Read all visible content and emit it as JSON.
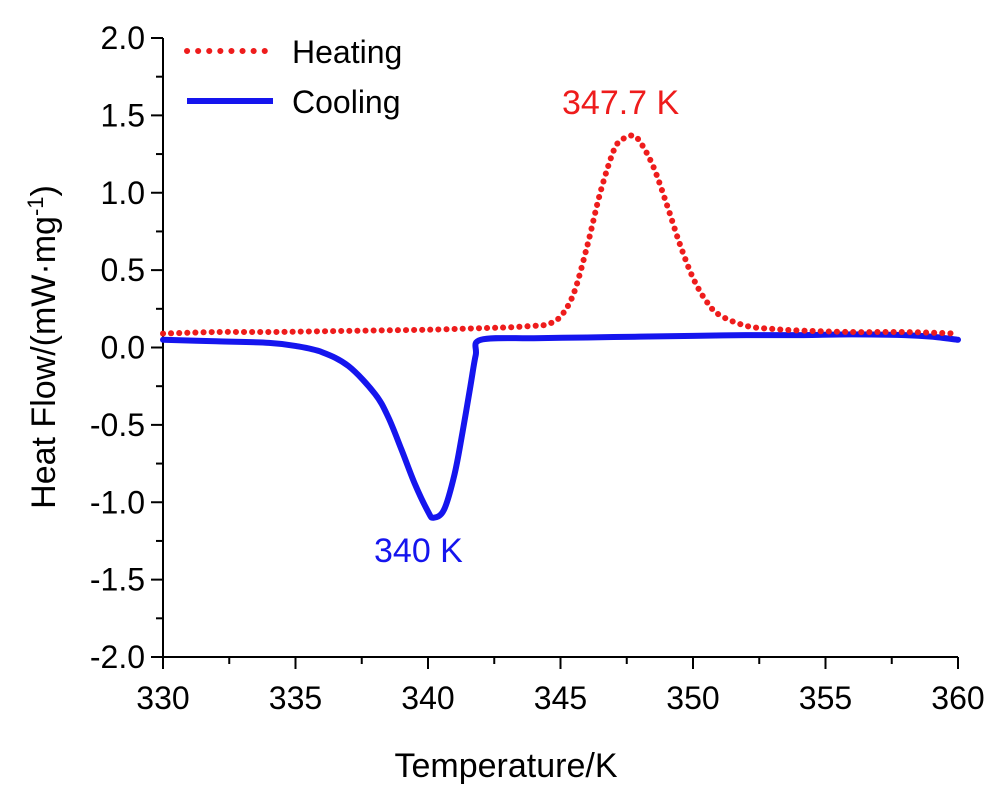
{
  "chart_data": {
    "type": "line",
    "title": "",
    "xlabel": "Temperature/K",
    "ylabel_main": "Heat Flow/(mW·mg",
    "ylabel_sup": "-1",
    "ylabel_close": ")",
    "xlim": [
      330,
      360
    ],
    "ylim": [
      -2.0,
      2.0
    ],
    "xticks": [
      330,
      335,
      340,
      345,
      350,
      355,
      360
    ],
    "xtick_labels": [
      "330",
      "335",
      "340",
      "345",
      "350",
      "355",
      "360"
    ],
    "yticks": [
      -2.0,
      -1.5,
      -1.0,
      -0.5,
      0.0,
      0.5,
      1.0,
      1.5,
      2.0
    ],
    "ytick_labels": [
      "-2.0",
      "-1.5",
      "-1.0",
      "-0.5",
      "0.0",
      "0.5",
      "1.0",
      "1.5",
      "2.0"
    ],
    "grid": false,
    "legend_position": "top-left",
    "series": [
      {
        "name": "Heating",
        "color": "#ee1c1c",
        "style": "dotted",
        "x": [
          330,
          332,
          334,
          336,
          338,
          340,
          342,
          343,
          344,
          344.5,
          345,
          345.5,
          346,
          346.5,
          347,
          347.3,
          347.7,
          348,
          348.5,
          349,
          349.5,
          350,
          350.5,
          351,
          352,
          353,
          354,
          356,
          358,
          360
        ],
        "y": [
          0.09,
          0.1,
          0.1,
          0.105,
          0.11,
          0.115,
          0.125,
          0.13,
          0.14,
          0.15,
          0.2,
          0.35,
          0.65,
          1.0,
          1.27,
          1.34,
          1.37,
          1.33,
          1.17,
          0.93,
          0.67,
          0.45,
          0.3,
          0.21,
          0.14,
          0.12,
          0.11,
          0.1,
          0.1,
          0.09
        ]
      },
      {
        "name": "Cooling",
        "color": "#1515ee",
        "style": "solid",
        "x": [
          330,
          332,
          334,
          335,
          336,
          337,
          338,
          338.5,
          339,
          339.5,
          340,
          340.2,
          340.6,
          341,
          341.3,
          341.6,
          341.8,
          342,
          344,
          346,
          348,
          350,
          352,
          354,
          356,
          358,
          359,
          360
        ],
        "y": [
          0.05,
          0.04,
          0.03,
          0.01,
          -0.03,
          -0.12,
          -0.3,
          -0.45,
          -0.66,
          -0.88,
          -1.06,
          -1.1,
          -1.05,
          -0.82,
          -0.55,
          -0.25,
          -0.05,
          0.05,
          0.06,
          0.065,
          0.07,
          0.075,
          0.08,
          0.08,
          0.085,
          0.08,
          0.07,
          0.05
        ]
      }
    ],
    "annotations": [
      {
        "text": "347.7 K",
        "color": "#ee1c1c"
      },
      {
        "text": "340 K",
        "color": "#1515ee"
      }
    ]
  }
}
